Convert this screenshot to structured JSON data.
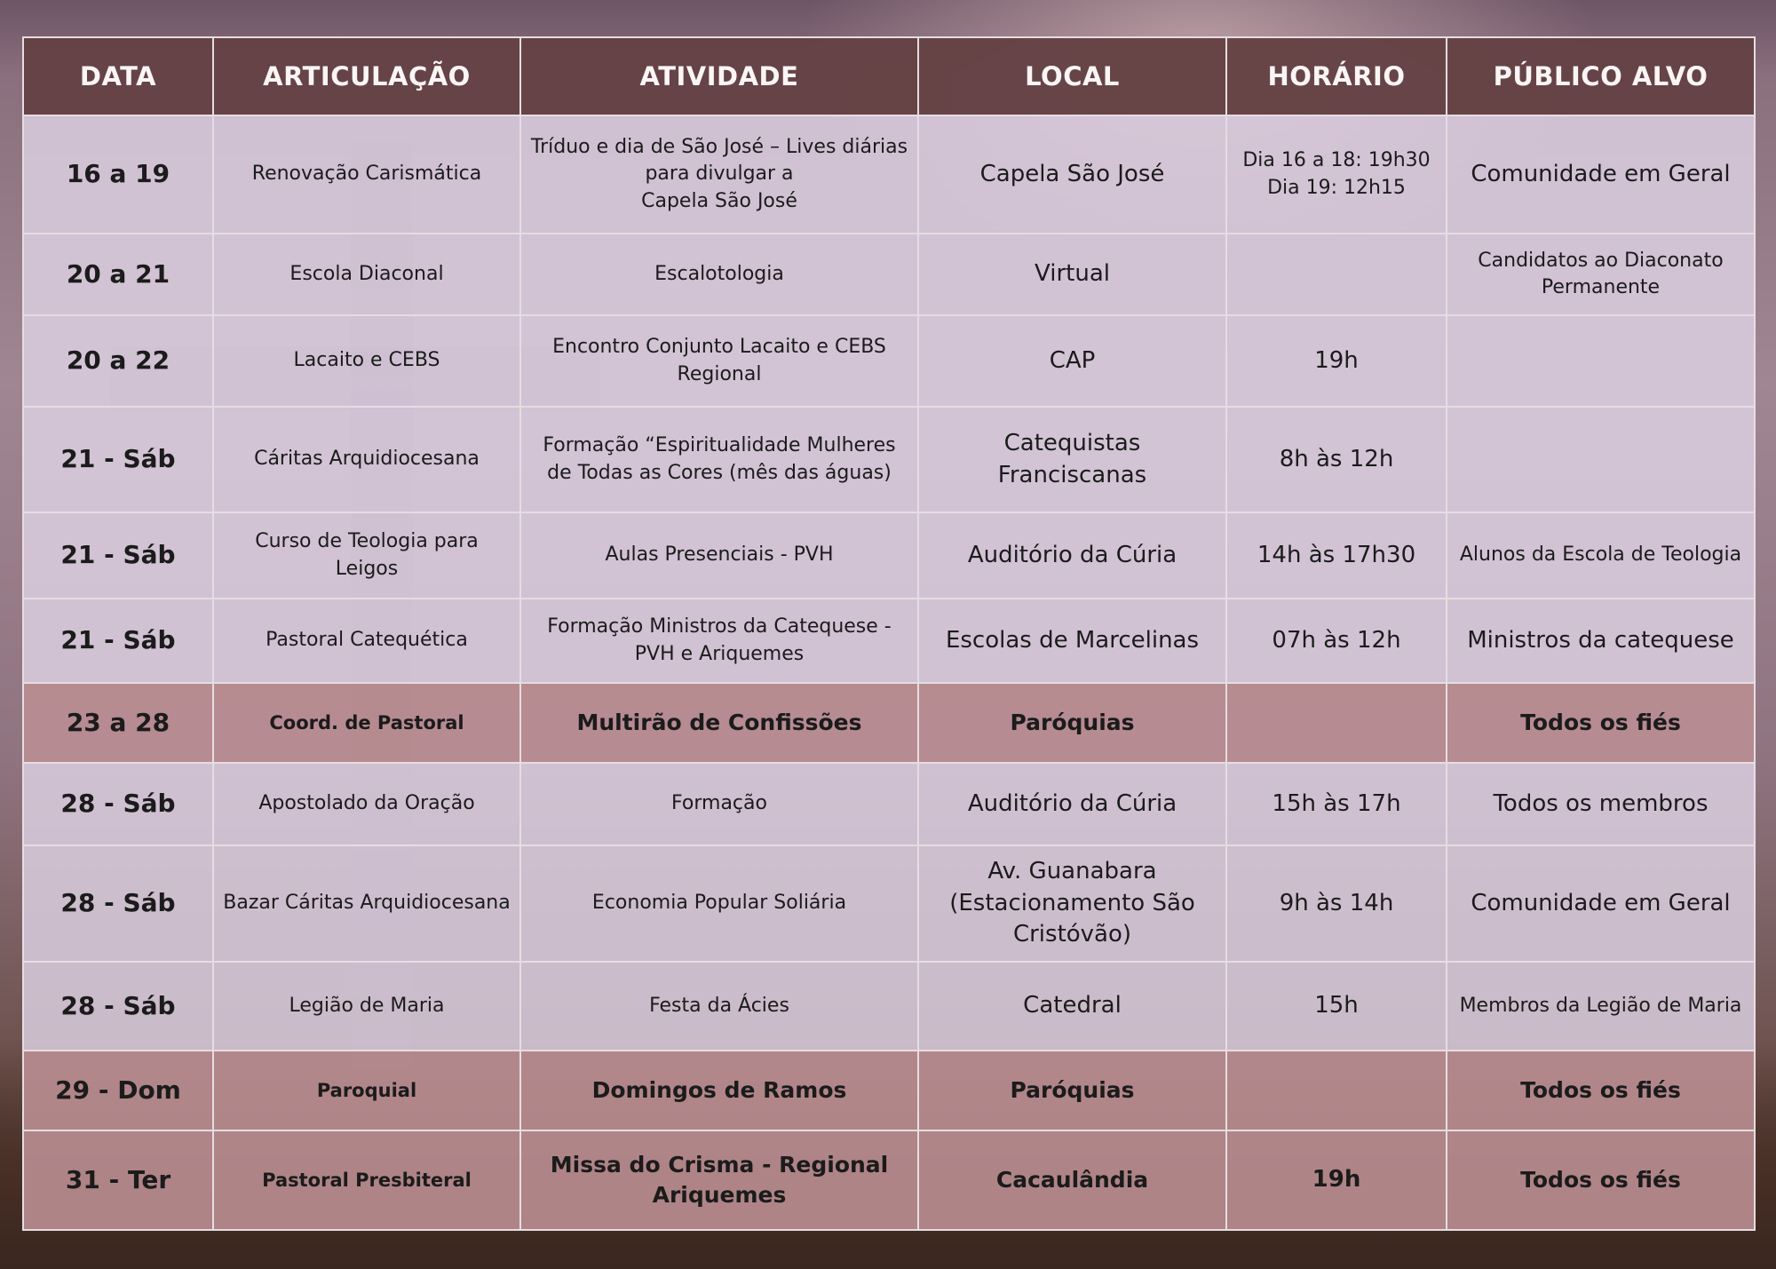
{
  "colors": {
    "header": "#644244",
    "row": "#ded2e4",
    "highlight": "#ba8e92"
  },
  "headers": [
    "DATA",
    "ARTICULAÇÃO",
    "ATIVIDADE",
    "LOCAL",
    "HORÁRIO",
    "PÚBLICO ALVO"
  ],
  "rows": [
    {
      "highlight": false,
      "cells": [
        "16 a 19",
        "Renovação Carismática",
        "Tríduo e dia de São José – Lives diárias para divulgar a\nCapela São José",
        "Capela São José",
        "Dia 16 a 18: 19h30\nDia 19: 12h15",
        "Comunidade em Geral"
      ]
    },
    {
      "highlight": false,
      "cells": [
        "20 a 21",
        "Escola Diaconal",
        "Escalotologia",
        "Virtual",
        "",
        "Candidatos ao Diaconato Permanente"
      ]
    },
    {
      "highlight": false,
      "cells": [
        "20 a 22",
        "Lacaito e CEBS",
        "Encontro Conjunto Lacaito e CEBS Regional",
        "CAP",
        "19h",
        ""
      ]
    },
    {
      "highlight": false,
      "cells": [
        "21 - Sáb",
        "Cáritas Arquidiocesana",
        "Formação “Espiritualidade Mulheres de Todas as Cores (mês das águas)",
        "Catequistas Franciscanas",
        "8h às 12h",
        ""
      ]
    },
    {
      "highlight": false,
      "cells": [
        "21 - Sáb",
        "Curso de Teologia para Leigos",
        "Aulas Presenciais - PVH",
        "Auditório da Cúria",
        "14h às 17h30",
        "Alunos da Escola de Teologia"
      ]
    },
    {
      "highlight": false,
      "cells": [
        "21 - Sáb",
        "Pastoral Catequética",
        "Formação Ministros da Catequese - PVH e Ariquemes",
        "Escolas de Marcelinas",
        "07h às 12h",
        "Ministros da catequese"
      ]
    },
    {
      "highlight": true,
      "cells": [
        "23 a 28",
        "Coord. de Pastoral",
        "Multirão de Confissões",
        "Paróquias",
        "",
        "Todos os fiés"
      ]
    },
    {
      "highlight": false,
      "cells": [
        "28 - Sáb",
        "Apostolado da Oração",
        "Formação",
        "Auditório da Cúria",
        "15h às 17h",
        "Todos os membros"
      ]
    },
    {
      "highlight": false,
      "cells": [
        "28 - Sáb",
        "Bazar Cáritas Arquidiocesana",
        "Economia Popular Soliária",
        "Av. Guanabara (Estacionamento São Cristóvão)",
        "9h às 14h",
        "Comunidade em Geral"
      ]
    },
    {
      "highlight": false,
      "cells": [
        "28 - Sáb",
        "Legião de Maria",
        "Festa da Ácies",
        "Catedral",
        "15h",
        "Membros da Legião de Maria"
      ]
    },
    {
      "highlight": true,
      "cells": [
        "29 - Dom",
        "Paroquial",
        "Domingos de Ramos",
        "Paróquias",
        "",
        "Todos os fiés"
      ]
    },
    {
      "highlight": true,
      "cells": [
        "31 - Ter",
        "Pastoral Presbiteral",
        "Missa do Crisma - Regional Ariquemes",
        "Cacaulândia",
        "19h",
        "Todos os fiés"
      ]
    }
  ]
}
